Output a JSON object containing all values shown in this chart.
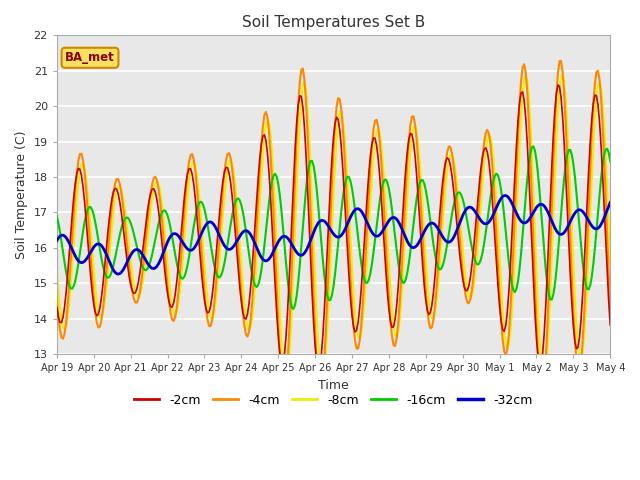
{
  "title": "Soil Temperatures Set B",
  "xlabel": "Time",
  "ylabel": "Soil Temperature (C)",
  "ylim": [
    13.0,
    22.0
  ],
  "yticks": [
    13.0,
    14.0,
    15.0,
    16.0,
    17.0,
    18.0,
    19.0,
    20.0,
    21.0,
    22.0
  ],
  "legend_label": "BA_met",
  "series_labels": [
    "-2cm",
    "-4cm",
    "-8cm",
    "-16cm",
    "-32cm"
  ],
  "series_colors": [
    "#cc0000",
    "#ff8800",
    "#eeee00",
    "#00cc00",
    "#0000cc"
  ],
  "series_linewidths": [
    1.2,
    1.5,
    1.5,
    1.5,
    2.0
  ],
  "fig_bg_color": "#ffffff",
  "plot_bg_color": "#e8e8e8",
  "tick_dates": [
    "Apr 19",
    "Apr 20",
    "Apr 21",
    "Apr 22",
    "Apr 23",
    "Apr 24",
    "Apr 25",
    "Apr 26",
    "Apr 27",
    "Apr 28",
    "Apr 29",
    "Apr 30",
    "May 1",
    "May 2",
    "May 3",
    "May 4"
  ],
  "num_days": 15
}
